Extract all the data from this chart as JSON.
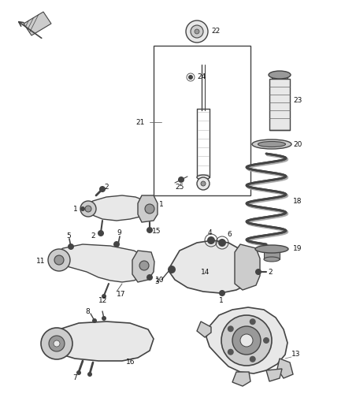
{
  "bg_color": "#ffffff",
  "fig_width": 4.38,
  "fig_height": 5.33,
  "dpi": 100,
  "lc": "#444444",
  "lc2": "#666666",
  "fc_light": "#e8e8e8",
  "fc_mid": "#cccccc",
  "fc_dark": "#999999",
  "label_fs": 6.5,
  "label_color": "#111111"
}
